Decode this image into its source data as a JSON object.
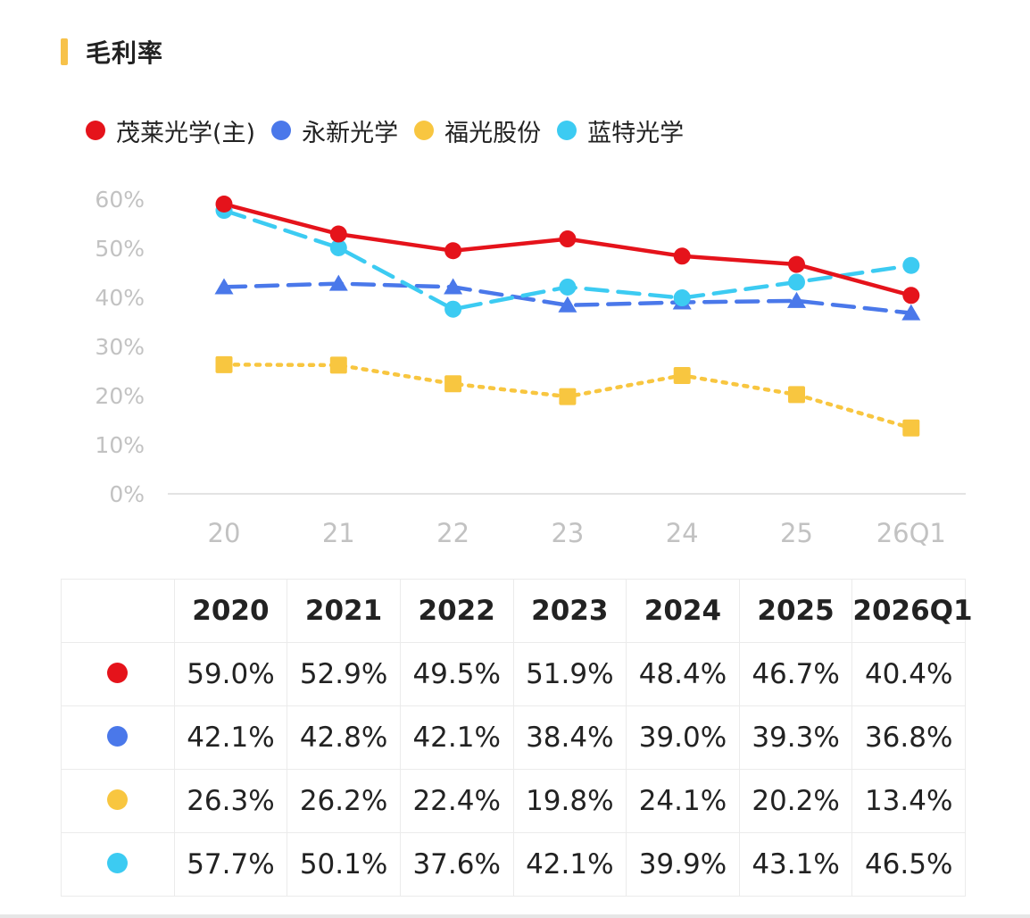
{
  "header": {
    "title": "毛利率",
    "accent_color": "#f7c24a"
  },
  "chart_data": {
    "type": "line",
    "title": "毛利率",
    "categories": [
      "20",
      "21",
      "22",
      "23",
      "24",
      "25",
      "26Q1"
    ],
    "y_ticks": [
      "0%",
      "10%",
      "20%",
      "30%",
      "40%",
      "50%",
      "60%"
    ],
    "ylim": [
      0,
      60
    ],
    "grid": false,
    "legend_position": "top-left",
    "series": [
      {
        "name": "茂莱光学(主)",
        "color": "#e5131b",
        "line": "solid",
        "marker": "circle",
        "values": [
          59.0,
          52.9,
          49.5,
          51.9,
          48.4,
          46.7,
          40.4
        ]
      },
      {
        "name": "永新光学",
        "color": "#4a78ea",
        "line": "dashed",
        "marker": "triangle",
        "values": [
          42.1,
          42.8,
          42.1,
          38.4,
          39.0,
          39.3,
          36.8
        ]
      },
      {
        "name": "福光股份",
        "color": "#f8c640",
        "line": "dotted",
        "marker": "square",
        "values": [
          26.3,
          26.2,
          22.4,
          19.8,
          24.1,
          20.2,
          13.4
        ]
      },
      {
        "name": "蓝特光学",
        "color": "#3ccbf2",
        "line": "dashed",
        "marker": "circle",
        "values": [
          57.7,
          50.1,
          37.6,
          42.1,
          39.9,
          43.1,
          46.5
        ]
      }
    ]
  },
  "table": {
    "headers": [
      "2020",
      "2021",
      "2022",
      "2023",
      "2024",
      "2025",
      "2026Q1"
    ],
    "rows": [
      {
        "color": "#e5131b",
        "cells": [
          "59.0%",
          "52.9%",
          "49.5%",
          "51.9%",
          "48.4%",
          "46.7%",
          "40.4%"
        ]
      },
      {
        "color": "#4a78ea",
        "cells": [
          "42.1%",
          "42.8%",
          "42.1%",
          "38.4%",
          "39.0%",
          "39.3%",
          "36.8%"
        ]
      },
      {
        "color": "#f8c640",
        "cells": [
          "26.3%",
          "26.2%",
          "22.4%",
          "19.8%",
          "24.1%",
          "20.2%",
          "13.4%"
        ]
      },
      {
        "color": "#3ccbf2",
        "cells": [
          "57.7%",
          "50.1%",
          "37.6%",
          "42.1%",
          "39.9%",
          "43.1%",
          "46.5%"
        ]
      }
    ]
  }
}
